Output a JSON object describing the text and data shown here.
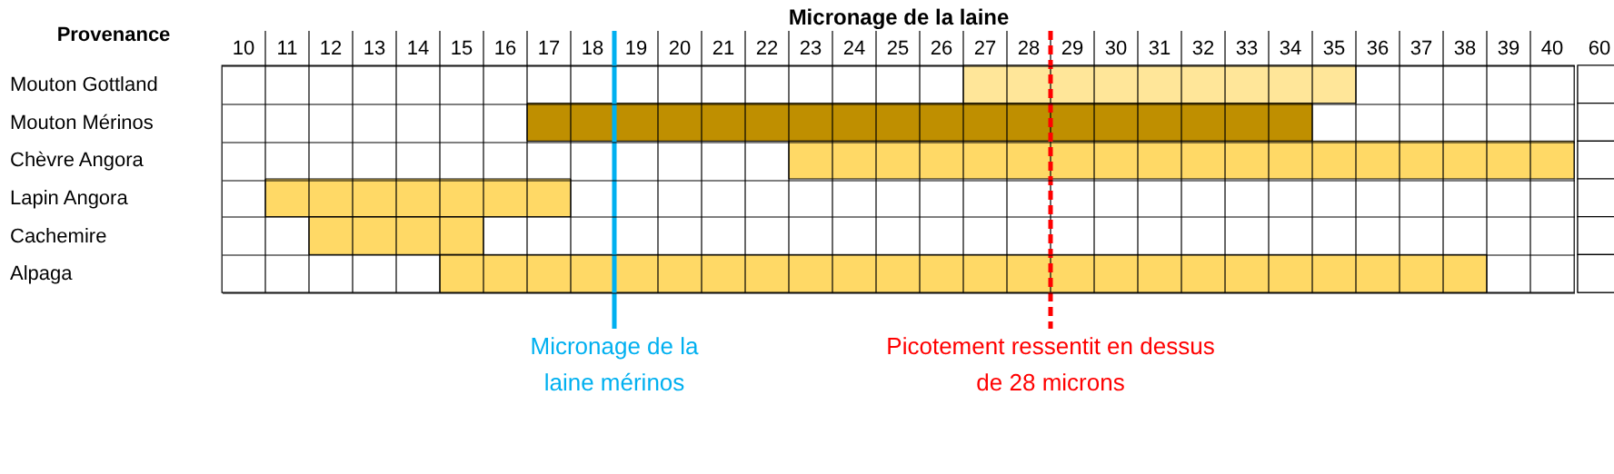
{
  "chart_data": [
    {
      "type": "bar",
      "orientation": "horizontal",
      "xlabel": "Micronage de la laine",
      "ylabel": "Provenance",
      "categories": [
        "Mouton Gottland",
        "Mouton Mérinos",
        "Chèvre Angora",
        "Lapin Angora",
        "Cachemire",
        "Alpaga"
      ],
      "base": [
        26.5,
        16.5,
        22.5,
        10.5,
        11.5,
        14.5
      ],
      "values": [
        9,
        18,
        18,
        7,
        4,
        24
      ],
      "colors": [
        "#ffe699",
        "#bf8f00",
        "#ffd966",
        "#ffd966",
        "#ffd966",
        "#ffd966"
      ],
      "xlim": [
        9.5,
        40.5
      ],
      "xticks": [
        10,
        11,
        12,
        13,
        14,
        15,
        16,
        17,
        18,
        19,
        20,
        21,
        22,
        23,
        24,
        25,
        26,
        27,
        28,
        29,
        30,
        31,
        32,
        33,
        34,
        35,
        36,
        37,
        38,
        39,
        40,
        {
          "value": 10.5,
          "label": null
        },
        {
          "value": 11.5,
          "label": null
        },
        {
          "value": 12.5,
          "label": null
        },
        {
          "value": 13.5,
          "label": null
        },
        {
          "value": 14.5,
          "label": null
        },
        {
          "value": 15.5,
          "label": null
        },
        {
          "value": 16.5,
          "label": null
        },
        {
          "value": 17.5,
          "label": null
        },
        {
          "value": 18.5,
          "label": null
        },
        {
          "value": 19.5,
          "label": null
        },
        {
          "value": 20.5,
          "label": null
        },
        {
          "value": 21.5,
          "label": null
        },
        {
          "value": 22.5,
          "label": null
        },
        {
          "value": 23.5,
          "label": null
        },
        {
          "value": 24.5,
          "label": null
        },
        {
          "value": 25.5,
          "label": null
        },
        {
          "value": 26.5,
          "label": null
        },
        {
          "value": 27.5,
          "label": null
        },
        {
          "value": 28.5,
          "label": null
        },
        {
          "value": 29.5,
          "label": null
        },
        {
          "value": 30.5,
          "label": null
        },
        {
          "value": 31.5,
          "label": null
        },
        {
          "value": 32.5,
          "label": null
        },
        {
          "value": 33.5,
          "label": null
        },
        {
          "value": 34.5,
          "label": null
        },
        {
          "value": 35.5,
          "label": null
        },
        {
          "value": 36.5,
          "label": null
        },
        {
          "value": 37.5,
          "label": null
        },
        {
          "value": 38.5,
          "label": null
        },
        {
          "value": 39.5,
          "label": null
        }
      ],
      "ref_lines": [
        {
          "axis": "x",
          "value": 18.5,
          "label": "Micronage de la\nlaine mérinos",
          "color": "#00b0f0",
          "line_style": "solid"
        },
        {
          "axis": "x",
          "value": 28.5,
          "label": "Picotement ressentit en dessus\nde  28 microns",
          "color": "#ff0000",
          "line_style": "dashed"
        }
      ],
      "grid": true
    },
    {
      "type": "other",
      "annotations": [
        "60"
      ]
    }
  ]
}
